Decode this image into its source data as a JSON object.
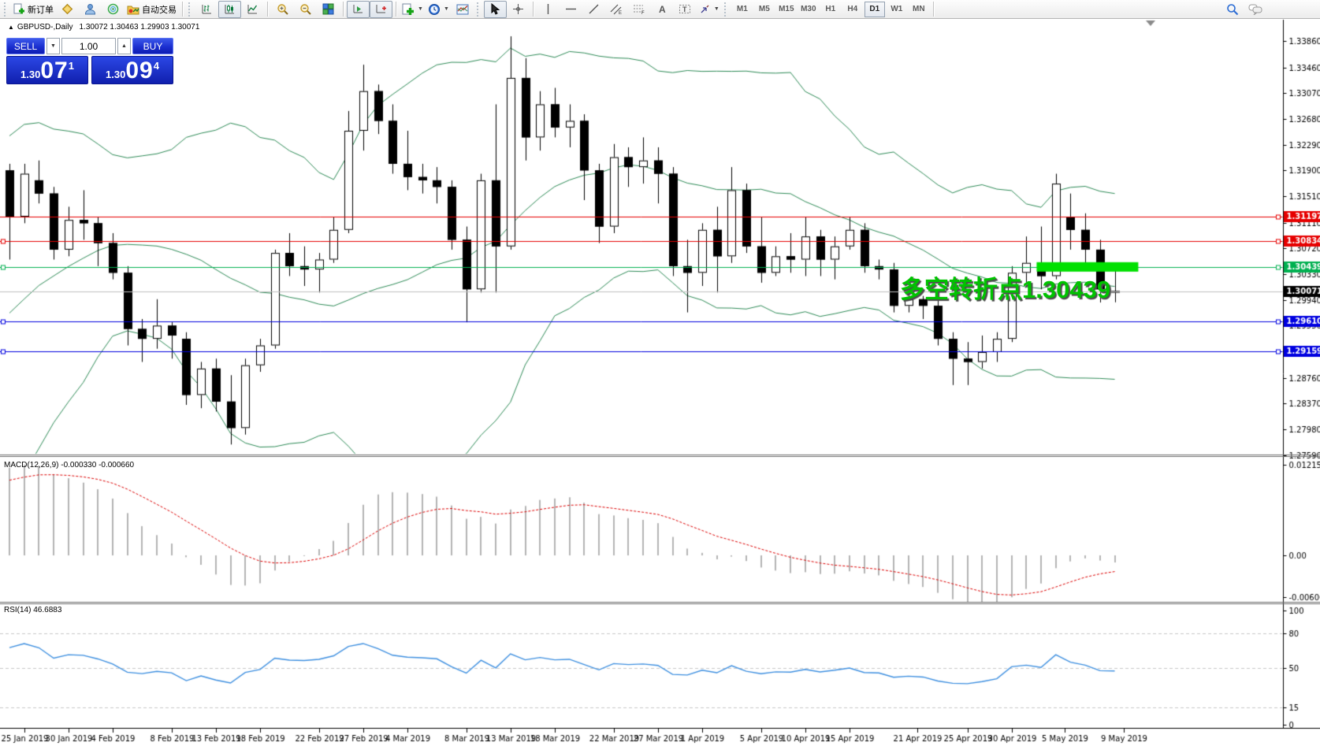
{
  "toolbar": {
    "new_order": "新订单",
    "autotrading": "自动交易",
    "timeframes": [
      "M1",
      "M5",
      "M15",
      "M30",
      "H1",
      "H4",
      "D1",
      "W1",
      "MN"
    ],
    "active_timeframe": "D1"
  },
  "header": {
    "marker": "▲",
    "symbol": "GBPUSD-,Daily",
    "ohlc": "1.30072 1.30463 1.29903 1.30071"
  },
  "trade_panel": {
    "sell": "SELL",
    "buy": "BUY",
    "volume": "1.00",
    "sell_price": {
      "base": "1.30",
      "big": "07",
      "sup": "1"
    },
    "buy_price": {
      "base": "1.30",
      "big": "09",
      "sup": "4"
    }
  },
  "panels": {
    "macd_label": "MACD(12,26,9) -0.000330 -0.000660",
    "rsi_label": "RSI(14) 46.6883"
  },
  "annotation": {
    "text": "多空转折点1.30439"
  },
  "chart_data": {
    "type": "candlestick",
    "symbol": "GBPUSD-",
    "period": "Daily",
    "ohlc_display": {
      "open": "1.30072",
      "high": "1.30463",
      "low": "1.29903",
      "close": "1.30071"
    },
    "ylim": [
      1.276,
      1.3403
    ],
    "price_ticks": [
      "1.33860",
      "1.33460",
      "1.33070",
      "1.32680",
      "1.32290",
      "1.31900",
      "1.31510",
      "1.31110",
      "1.30720",
      "1.30330",
      "1.29940",
      "1.29550",
      "1.28760",
      "1.28370",
      "1.27980",
      "1.27590"
    ],
    "date_ticks": [
      [
        1,
        "25 Jan 2019"
      ],
      [
        4,
        "30 Jan 2019"
      ],
      [
        7,
        "4 Feb 2019"
      ],
      [
        11,
        "8 Feb 2019"
      ],
      [
        14,
        "13 Feb 2019"
      ],
      [
        17,
        "18 Feb 2019"
      ],
      [
        21,
        "22 Feb 2019"
      ],
      [
        24,
        "27 Feb 2019"
      ],
      [
        27,
        "4 Mar 2019"
      ],
      [
        31,
        "8 Mar 2019"
      ],
      [
        34,
        "13 Mar 2019"
      ],
      [
        37,
        "18 Mar 2019"
      ],
      [
        41,
        "22 Mar 2019"
      ],
      [
        44,
        "27 Mar 2019"
      ],
      [
        47,
        "1 Apr 2019"
      ],
      [
        51,
        "5 Apr 2019"
      ],
      [
        54,
        "10 Apr 2019"
      ],
      [
        57,
        "15 Apr 2019"
      ],
      [
        61.6,
        "21 Apr 2019"
      ],
      [
        65,
        "25 Apr 2019"
      ],
      [
        68,
        "30 Apr 2019"
      ],
      [
        71.6,
        "5 May 2019"
      ],
      [
        75.6,
        "9 May 2019"
      ]
    ],
    "hlines": [
      {
        "price": 1.31197,
        "label": "1.31197",
        "color": "#e60000",
        "left_anchor": false
      },
      {
        "price": 1.30834,
        "label": "1.30834",
        "color": "#e60000",
        "left_anchor": true
      },
      {
        "price": 1.30439,
        "label": "1.30439",
        "color": "#00b050",
        "left_anchor": true
      },
      {
        "price": 1.2961,
        "label": "1.29610",
        "color": "#0000e0",
        "left_anchor": true
      },
      {
        "price": 1.29159,
        "label": "1.29159",
        "color": "#0000e0",
        "left_anchor": true
      }
    ],
    "current_price": {
      "value": 1.30071,
      "label": "1.30071",
      "line_color": "#c0c0c0",
      "label_bg": "#000000"
    },
    "highlight_bar": {
      "price": 1.30439,
      "from_candle": 69.7,
      "to_candle": 76.6,
      "color": "#00e000",
      "thickness": 12
    },
    "bollinger": {
      "period": 20,
      "deviation": 2,
      "color": "#2e8b57"
    },
    "candles": [
      [
        1.319,
        1.32,
        1.3055,
        1.312
      ],
      [
        1.312,
        1.32,
        1.311,
        1.3185
      ],
      [
        1.3175,
        1.3205,
        1.314,
        1.3155
      ],
      [
        1.3155,
        1.3165,
        1.3055,
        1.307
      ],
      [
        1.307,
        1.3135,
        1.306,
        1.3115
      ],
      [
        1.3115,
        1.316,
        1.3085,
        1.311
      ],
      [
        1.311,
        1.312,
        1.3045,
        1.308
      ],
      [
        1.308,
        1.3095,
        1.3025,
        1.3035
      ],
      [
        1.3035,
        1.3045,
        1.2925,
        1.295
      ],
      [
        1.295,
        1.2965,
        1.29,
        1.2935
      ],
      [
        1.2935,
        1.2995,
        1.292,
        1.2955
      ],
      [
        1.2955,
        1.296,
        1.2905,
        1.294
      ],
      [
        1.2935,
        1.2945,
        1.2835,
        1.285
      ],
      [
        1.285,
        1.29,
        1.283,
        1.289
      ],
      [
        1.289,
        1.2905,
        1.2825,
        1.284
      ],
      [
        1.284,
        1.288,
        1.2775,
        1.28
      ],
      [
        1.28,
        1.2905,
        1.279,
        1.2895
      ],
      [
        1.2895,
        1.2935,
        1.2885,
        1.2925
      ],
      [
        1.2925,
        1.307,
        1.292,
        1.3065
      ],
      [
        1.3065,
        1.3095,
        1.303,
        1.3045
      ],
      [
        1.3045,
        1.3075,
        1.3015,
        1.304
      ],
      [
        1.304,
        1.3065,
        1.3005,
        1.3055
      ],
      [
        1.3055,
        1.312,
        1.305,
        1.31
      ],
      [
        1.31,
        1.328,
        1.3095,
        1.325
      ],
      [
        1.325,
        1.335,
        1.322,
        1.331
      ],
      [
        1.331,
        1.332,
        1.3245,
        1.3265
      ],
      [
        1.3265,
        1.329,
        1.3185,
        1.32
      ],
      [
        1.32,
        1.325,
        1.316,
        1.318
      ],
      [
        1.318,
        1.32,
        1.3155,
        1.3175
      ],
      [
        1.3175,
        1.3195,
        1.314,
        1.3165
      ],
      [
        1.3165,
        1.3175,
        1.307,
        1.3085
      ],
      [
        1.3085,
        1.3105,
        1.296,
        1.301
      ],
      [
        1.301,
        1.3185,
        1.3005,
        1.3175
      ],
      [
        1.3175,
        1.329,
        1.3005,
        1.3075
      ],
      [
        1.3075,
        1.3393,
        1.307,
        1.333
      ],
      [
        1.333,
        1.336,
        1.3205,
        1.324
      ],
      [
        1.324,
        1.331,
        1.322,
        1.329
      ],
      [
        1.329,
        1.3315,
        1.324,
        1.3255
      ],
      [
        1.3255,
        1.329,
        1.3225,
        1.3265
      ],
      [
        1.3265,
        1.3275,
        1.3145,
        1.319
      ],
      [
        1.319,
        1.32,
        1.308,
        1.3105
      ],
      [
        1.3105,
        1.323,
        1.3095,
        1.321
      ],
      [
        1.321,
        1.3225,
        1.3165,
        1.3195
      ],
      [
        1.3195,
        1.324,
        1.317,
        1.3205
      ],
      [
        1.3205,
        1.3225,
        1.314,
        1.3185
      ],
      [
        1.3185,
        1.3195,
        1.303,
        1.3045
      ],
      [
        1.3045,
        1.3085,
        1.2975,
        1.3035
      ],
      [
        1.3035,
        1.311,
        1.3015,
        1.31
      ],
      [
        1.31,
        1.3135,
        1.3005,
        1.306
      ],
      [
        1.306,
        1.3195,
        1.305,
        1.316
      ],
      [
        1.316,
        1.317,
        1.3065,
        1.3075
      ],
      [
        1.3075,
        1.312,
        1.302,
        1.3035
      ],
      [
        1.3035,
        1.3075,
        1.303,
        1.306
      ],
      [
        1.306,
        1.3095,
        1.3035,
        1.3055
      ],
      [
        1.3055,
        1.312,
        1.303,
        1.309
      ],
      [
        1.309,
        1.31,
        1.303,
        1.3055
      ],
      [
        1.3055,
        1.309,
        1.3025,
        1.3075
      ],
      [
        1.3075,
        1.312,
        1.307,
        1.31
      ],
      [
        1.31,
        1.311,
        1.3035,
        1.3045
      ],
      [
        1.3045,
        1.3055,
        1.3025,
        1.304
      ],
      [
        1.304,
        1.305,
        1.2975,
        1.2985
      ],
      [
        1.2985,
        1.3005,
        1.2975,
        1.2995
      ],
      [
        1.2995,
        1.3,
        1.2965,
        1.2985
      ],
      [
        1.2985,
        1.2995,
        1.2925,
        1.2935
      ],
      [
        1.2935,
        1.2945,
        1.2865,
        1.2905
      ],
      [
        1.2905,
        1.293,
        1.2865,
        1.29
      ],
      [
        1.29,
        1.294,
        1.289,
        1.2915
      ],
      [
        1.2915,
        1.2945,
        1.29,
        1.2935
      ],
      [
        1.2935,
        1.3045,
        1.293,
        1.3035
      ],
      [
        1.3035,
        1.309,
        1.302,
        1.305
      ],
      [
        1.305,
        1.3105,
        1.301,
        1.303
      ],
      [
        1.303,
        1.3185,
        1.3025,
        1.317
      ],
      [
        1.312,
        1.3155,
        1.307,
        1.31
      ],
      [
        1.31,
        1.3125,
        1.305,
        1.307
      ],
      [
        1.307,
        1.3085,
        1.299,
        1.301
      ],
      [
        1.30072,
        1.30463,
        1.29903,
        1.30071
      ]
    ],
    "history_closes": [
      1.277,
      1.2745,
      1.272,
      1.276,
      1.2745,
      1.278,
      1.283,
      1.286,
      1.2845,
      1.288,
      1.292,
      1.2955,
      1.2985,
      1.304,
      1.3,
      1.307,
      1.312,
      1.3065,
      1.3095,
      1.315,
      1.31,
      1.316
    ],
    "macd": {
      "params": "12,26,9",
      "value": "-0.000330",
      "signal": "-0.000660",
      "ticks": [
        "0.012157",
        "0.00",
        "-0.006064"
      ],
      "histogram_color": "#b4b4b4",
      "signal_color": "#dd0000"
    },
    "rsi": {
      "period": 14,
      "value": "46.6883",
      "ticks": [
        "100",
        "80",
        "50",
        "15",
        "0"
      ],
      "levels": [
        80,
        50,
        15
      ],
      "color": "#3d8fe0"
    }
  }
}
